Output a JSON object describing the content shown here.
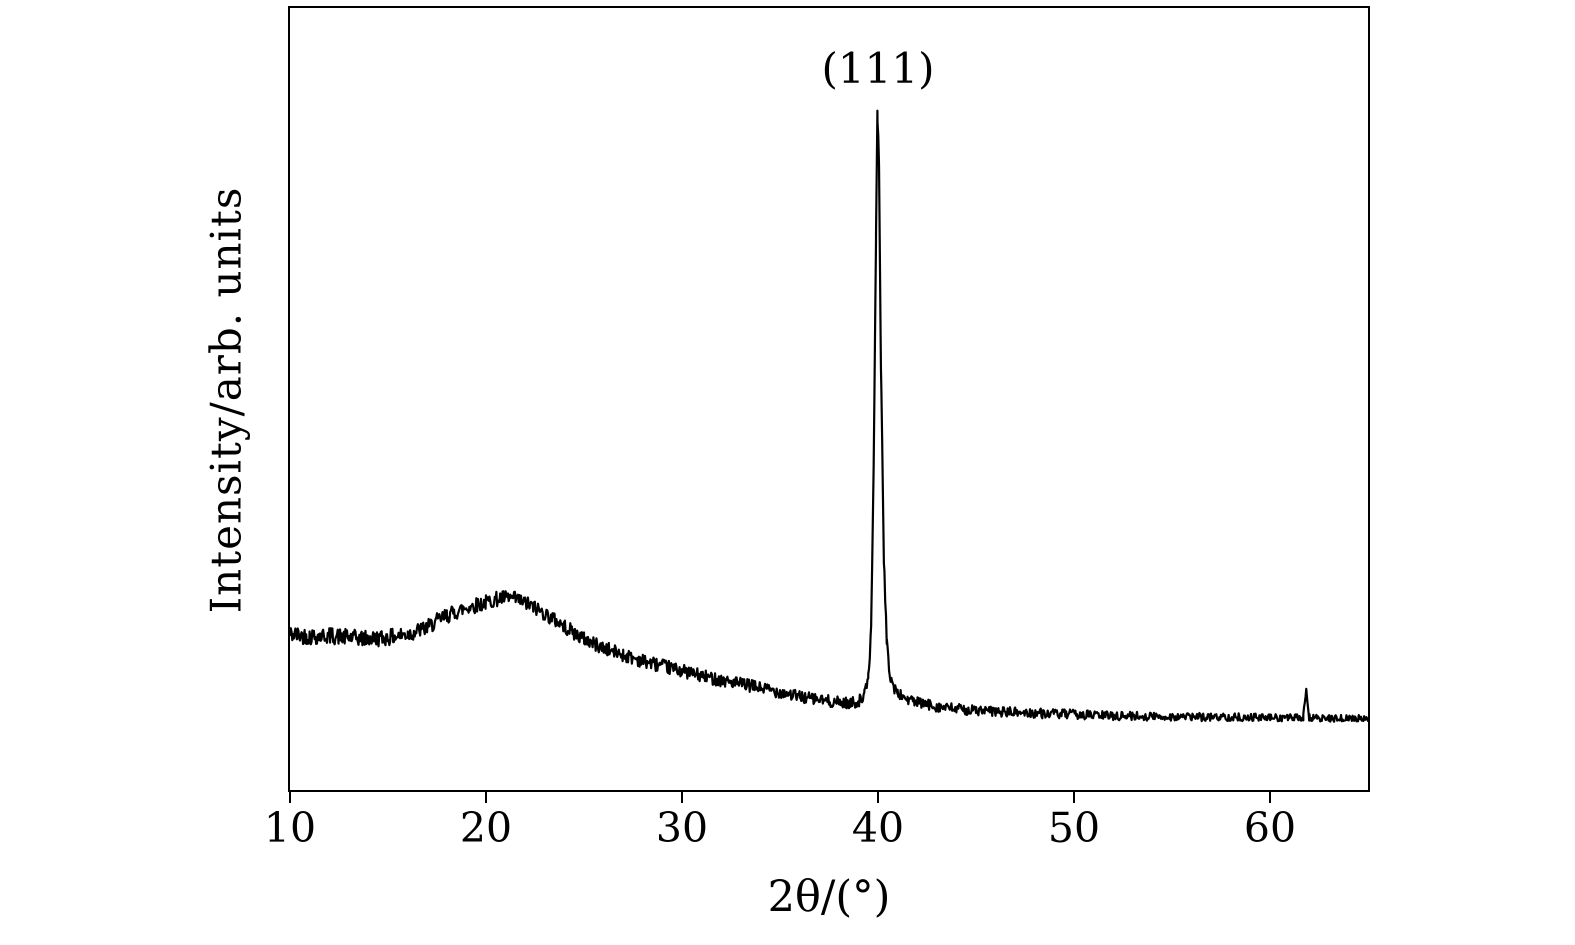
{
  "figure": {
    "background": "#ffffff",
    "frame_color": "#000000"
  },
  "chart_data": {
    "type": "line",
    "title": "",
    "xlabel": "2θ/(°)",
    "ylabel": "Intensity/arb. units",
    "xlim": [
      10,
      65
    ],
    "ylim": [
      -0.02,
      1.16
    ],
    "x_ticks": [
      10,
      20,
      30,
      40,
      50,
      60
    ],
    "y_ticks": [],
    "grid": false,
    "legend": false,
    "annotations": [
      {
        "text": "(111)",
        "x": 40,
        "y": 1.08
      }
    ],
    "series": [
      {
        "name": "XRD pattern (noisy diffractogram: broad amorphous hump ~21°, sharp (111) peak at 40°, minor spike ~61.9°)",
        "color": "#000000",
        "line_width": 2.2,
        "samples": 1400,
        "noise_amplitude_start": 0.013,
        "noise_amplitude_end": 0.005,
        "noise_seed": 42,
        "profile_points": [
          [
            10,
            0.215
          ],
          [
            11,
            0.212
          ],
          [
            12,
            0.213
          ],
          [
            13,
            0.21
          ],
          [
            14,
            0.208
          ],
          [
            15,
            0.21
          ],
          [
            16,
            0.215
          ],
          [
            17,
            0.225
          ],
          [
            17.5,
            0.235
          ],
          [
            18,
            0.243
          ],
          [
            19,
            0.255
          ],
          [
            20,
            0.263
          ],
          [
            20.5,
            0.268
          ],
          [
            21,
            0.27
          ],
          [
            21.5,
            0.268
          ],
          [
            22,
            0.262
          ],
          [
            22.5,
            0.255
          ],
          [
            23,
            0.246
          ],
          [
            23.5,
            0.237
          ],
          [
            24,
            0.227
          ],
          [
            24.5,
            0.217
          ],
          [
            25,
            0.208
          ],
          [
            26,
            0.194
          ],
          [
            27,
            0.184
          ],
          [
            28,
            0.175
          ],
          [
            29,
            0.167
          ],
          [
            30,
            0.16
          ],
          [
            31,
            0.152
          ],
          [
            32,
            0.146
          ],
          [
            33,
            0.14
          ],
          [
            34,
            0.134
          ],
          [
            35,
            0.128
          ],
          [
            36,
            0.121
          ],
          [
            37,
            0.116
          ],
          [
            38,
            0.112
          ],
          [
            38.6,
            0.111
          ],
          [
            39,
            0.114
          ],
          [
            39.3,
            0.122
          ],
          [
            39.5,
            0.148
          ],
          [
            39.65,
            0.22
          ],
          [
            39.8,
            0.52
          ],
          [
            39.9,
            0.82
          ],
          [
            39.97,
            1.0
          ],
          [
            40.05,
            0.93
          ],
          [
            40.15,
            0.62
          ],
          [
            40.3,
            0.33
          ],
          [
            40.45,
            0.2
          ],
          [
            40.6,
            0.155
          ],
          [
            40.8,
            0.135
          ],
          [
            41,
            0.126
          ],
          [
            41.5,
            0.117
          ],
          [
            42,
            0.112
          ],
          [
            43,
            0.106
          ],
          [
            44,
            0.102
          ],
          [
            45,
            0.1
          ],
          [
            46,
            0.098
          ],
          [
            47,
            0.097
          ],
          [
            48,
            0.096
          ],
          [
            50,
            0.094
          ],
          [
            52,
            0.092
          ],
          [
            54,
            0.091
          ],
          [
            56,
            0.09
          ],
          [
            58,
            0.09
          ],
          [
            60,
            0.089
          ],
          [
            61,
            0.089
          ],
          [
            61.7,
            0.089
          ],
          [
            61.85,
            0.133
          ],
          [
            62,
            0.089
          ],
          [
            63,
            0.088
          ],
          [
            64,
            0.088
          ],
          [
            65,
            0.088
          ]
        ]
      }
    ]
  }
}
